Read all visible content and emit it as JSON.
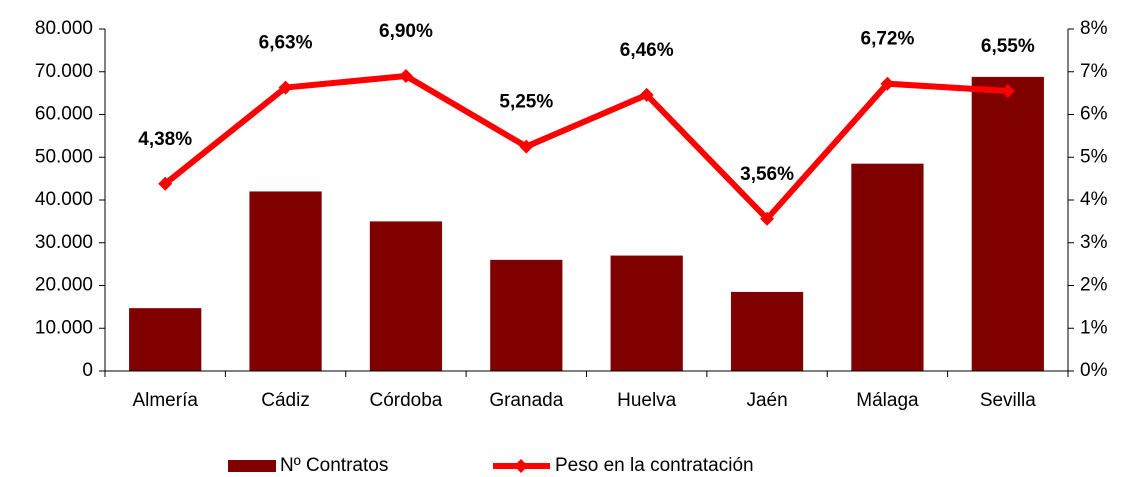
{
  "chart_data": {
    "type": "bar_line",
    "categories": [
      "Almería",
      "Cádiz",
      "Córdoba",
      "Granada",
      "Huelva",
      "Jaén",
      "Málaga",
      "Sevilla"
    ],
    "series": [
      {
        "name": "Nº Contratos",
        "color": "#800000",
        "type": "bar",
        "axis": "y",
        "values": [
          14700,
          42000,
          35000,
          26000,
          27000,
          18500,
          48500,
          68800
        ]
      },
      {
        "name": "Peso en la contratación",
        "color": "#ff0000",
        "type": "line",
        "axis": "y2",
        "values": [
          4.38,
          6.63,
          6.9,
          5.25,
          6.46,
          3.56,
          6.72,
          6.55
        ],
        "value_labels": [
          "4,38%",
          "6,63%",
          "6,90%",
          "5,25%",
          "6,46%",
          "3,56%",
          "6,72%",
          "6,55%"
        ]
      }
    ],
    "ylim": [
      0,
      80000
    ],
    "yticks": [
      0,
      {
        "value": 10000,
        "label": "10.000"
      },
      {
        "value": 20000,
        "label": "20.000"
      },
      {
        "value": 30000,
        "label": "30.000"
      },
      {
        "value": 40000,
        "label": "40.000"
      },
      {
        "value": 50000,
        "label": "50.000"
      },
      {
        "value": 60000,
        "label": "60.000"
      },
      {
        "value": 70000,
        "label": "70.000"
      },
      {
        "value": 80000,
        "label": "80.000"
      }
    ],
    "y2lim": [
      0,
      8
    ],
    "y2ticks": [
      {
        "value": 0,
        "label": "0%"
      },
      {
        "value": 1,
        "label": "1%"
      },
      {
        "value": 2,
        "label": "2%"
      },
      {
        "value": 3,
        "label": "3%"
      },
      {
        "value": 4,
        "label": "4%"
      },
      {
        "value": 5,
        "label": "5%"
      },
      {
        "value": 6,
        "label": "6%"
      },
      {
        "value": 7,
        "label": "7%"
      },
      {
        "value": 8,
        "label": "8%"
      }
    ],
    "grid": false,
    "legend": "bottom"
  }
}
